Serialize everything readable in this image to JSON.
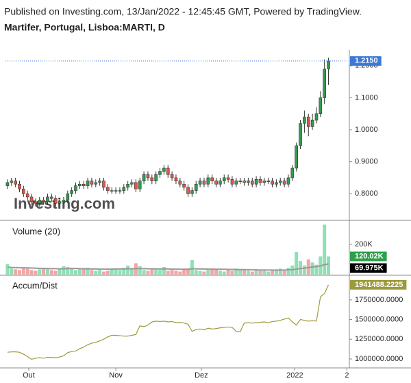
{
  "header": {
    "published": "Published on Investing.com, 13/Jan/2022 - 12:45:45 GMT, Powered by TradingView.",
    "symbol": "Martifer, Portugal, Lisboa:MARTI, D"
  },
  "chart_data": [
    {
      "type": "candlestick",
      "watermark": "Investing.com",
      "up_color": "#2e9e4b",
      "down_color": "#e5534b",
      "xlim": [
        -0.5,
        85.2
      ],
      "xticks": [
        {
          "value": 5.3,
          "label": "Out"
        },
        {
          "value": 27,
          "label": "Nov"
        },
        {
          "value": 48.3,
          "label": "Dez"
        },
        {
          "value": 71.6,
          "label": "2022"
        },
        {
          "value": 84.6,
          "label": "2"
        }
      ],
      "ylim": [
        0.719,
        1.2447
      ],
      "yticks": [
        {
          "value": 0.8,
          "label": "0.8000"
        },
        {
          "value": 0.9,
          "label": "0.9000"
        },
        {
          "value": 1.0,
          "label": "1.0000"
        },
        {
          "value": 1.1,
          "label": "1.1000"
        },
        {
          "value": 1.2,
          "label": "1.2000"
        }
      ],
      "last_price": {
        "value": 1.215,
        "label": "1.2150",
        "color": "#3c78d8"
      },
      "open": [
        0.825,
        0.835,
        0.84,
        0.83,
        0.815,
        0.8,
        0.79,
        0.775,
        0.77,
        0.78,
        0.775,
        0.79,
        0.785,
        0.77,
        0.775,
        0.78,
        0.8,
        0.81,
        0.825,
        0.83,
        0.825,
        0.84,
        0.83,
        0.835,
        0.84,
        0.82,
        0.81,
        0.81,
        0.81,
        0.81,
        0.82,
        0.83,
        0.835,
        0.815,
        0.84,
        0.86,
        0.85,
        0.84,
        0.86,
        0.87,
        0.88,
        0.86,
        0.85,
        0.84,
        0.83,
        0.82,
        0.8,
        0.81,
        0.83,
        0.84,
        0.83,
        0.85,
        0.84,
        0.83,
        0.84,
        0.85,
        0.845,
        0.83,
        0.84,
        0.84,
        0.835,
        0.84,
        0.83,
        0.845,
        0.835,
        0.84,
        0.84,
        0.83,
        0.835,
        0.84,
        0.83,
        0.85,
        0.88,
        0.95,
        1.02,
        1.04,
        1.01,
        1.03,
        1.05,
        1.1,
        1.19
      ],
      "high": [
        0.845,
        0.85,
        0.85,
        0.84,
        0.825,
        0.81,
        0.8,
        0.785,
        0.79,
        0.79,
        0.8,
        0.8,
        0.795,
        0.785,
        0.79,
        0.81,
        0.82,
        0.835,
        0.84,
        0.84,
        0.85,
        0.85,
        0.845,
        0.85,
        0.85,
        0.83,
        0.82,
        0.82,
        0.82,
        0.83,
        0.84,
        0.845,
        0.845,
        0.85,
        0.87,
        0.87,
        0.86,
        0.87,
        0.88,
        0.89,
        0.89,
        0.87,
        0.86,
        0.85,
        0.84,
        0.83,
        0.82,
        0.84,
        0.85,
        0.85,
        0.86,
        0.86,
        0.85,
        0.85,
        0.86,
        0.86,
        0.855,
        0.85,
        0.85,
        0.85,
        0.85,
        0.85,
        0.855,
        0.855,
        0.85,
        0.85,
        0.85,
        0.845,
        0.85,
        0.85,
        0.86,
        0.89,
        0.96,
        1.03,
        1.06,
        1.05,
        1.05,
        1.07,
        1.12,
        1.22,
        1.225
      ],
      "low": [
        0.815,
        0.825,
        0.82,
        0.805,
        0.79,
        0.78,
        0.765,
        0.76,
        0.76,
        0.765,
        0.765,
        0.775,
        0.76,
        0.76,
        0.765,
        0.77,
        0.79,
        0.8,
        0.815,
        0.815,
        0.815,
        0.82,
        0.82,
        0.825,
        0.81,
        0.8,
        0.8,
        0.8,
        0.8,
        0.8,
        0.81,
        0.82,
        0.805,
        0.805,
        0.83,
        0.84,
        0.83,
        0.83,
        0.85,
        0.86,
        0.85,
        0.84,
        0.83,
        0.82,
        0.81,
        0.79,
        0.79,
        0.8,
        0.82,
        0.82,
        0.82,
        0.83,
        0.82,
        0.82,
        0.83,
        0.835,
        0.82,
        0.82,
        0.83,
        0.825,
        0.825,
        0.82,
        0.82,
        0.825,
        0.825,
        0.83,
        0.82,
        0.82,
        0.825,
        0.82,
        0.82,
        0.84,
        0.87,
        0.94,
        0.99,
        0.98,
        1.0,
        1.02,
        1.04,
        1.08,
        1.14
      ],
      "close": [
        0.835,
        0.84,
        0.83,
        0.815,
        0.8,
        0.79,
        0.775,
        0.77,
        0.78,
        0.775,
        0.79,
        0.785,
        0.77,
        0.775,
        0.78,
        0.8,
        0.81,
        0.825,
        0.83,
        0.825,
        0.84,
        0.83,
        0.835,
        0.84,
        0.82,
        0.81,
        0.81,
        0.81,
        0.81,
        0.82,
        0.83,
        0.835,
        0.815,
        0.84,
        0.86,
        0.85,
        0.84,
        0.86,
        0.87,
        0.88,
        0.86,
        0.85,
        0.84,
        0.83,
        0.82,
        0.8,
        0.81,
        0.83,
        0.84,
        0.83,
        0.85,
        0.84,
        0.83,
        0.84,
        0.85,
        0.845,
        0.83,
        0.84,
        0.84,
        0.835,
        0.84,
        0.83,
        0.845,
        0.835,
        0.84,
        0.84,
        0.83,
        0.835,
        0.84,
        0.83,
        0.85,
        0.88,
        0.95,
        1.02,
        1.04,
        1.01,
        1.03,
        1.05,
        1.1,
        1.19,
        1.215
      ]
    },
    {
      "type": "bar",
      "title": "Volume (20)",
      "up_color": "#8fe0b5",
      "down_color": "#f4a5a5",
      "last_label": "120.02K",
      "last_label_color": "#2e9e4b",
      "ylim": [
        0,
        354000
      ],
      "yticks": [
        {
          "value": 200000,
          "label": "200K"
        }
      ],
      "values": [
        70000,
        40000,
        35000,
        30000,
        45000,
        40000,
        30000,
        25000,
        35000,
        45000,
        40000,
        30000,
        25000,
        35000,
        55000,
        50000,
        45000,
        30000,
        40000,
        35000,
        45000,
        30000,
        25000,
        30000,
        20000,
        25000,
        40000,
        35000,
        30000,
        45000,
        60000,
        40000,
        75000,
        55000,
        30000,
        25000,
        40000,
        35000,
        30000,
        50000,
        25000,
        30000,
        25000,
        20000,
        35000,
        40000,
        95000,
        30000,
        25000,
        20000,
        30000,
        40000,
        35000,
        25000,
        20000,
        30000,
        25000,
        40000,
        35000,
        30000,
        25000,
        20000,
        30000,
        25000,
        25000,
        20000,
        30000,
        35000,
        40000,
        25000,
        45000,
        60000,
        150000,
        90000,
        60000,
        100000,
        80000,
        65000,
        120000,
        330000,
        120020
      ],
      "ma": {
        "color": "#999999",
        "last_label": "69.975K",
        "last_label_color": "#000000",
        "values": [
          48000,
          47000,
          46000,
          45000,
          45000,
          44000,
          43000,
          42000,
          41000,
          40000,
          40000,
          39000,
          39000,
          38000,
          38000,
          39000,
          40000,
          40000,
          39000,
          38000,
          38000,
          37000,
          37000,
          36000,
          36000,
          36000,
          36000,
          37000,
          37000,
          37000,
          38000,
          38000,
          39000,
          39000,
          39000,
          38000,
          38000,
          38000,
          37000,
          37000,
          37000,
          36000,
          36000,
          35000,
          35000,
          36000,
          38000,
          38000,
          37000,
          37000,
          36000,
          36000,
          35000,
          35000,
          35000,
          34000,
          34000,
          33000,
          33000,
          33000,
          32000,
          31000,
          31000,
          30000,
          30000,
          30000,
          30000,
          29000,
          29000,
          30000,
          31000,
          32000,
          36000,
          40000,
          42000,
          46000,
          50000,
          53000,
          57000,
          66000,
          69975
        ]
      }
    },
    {
      "type": "line",
      "title": "Accum/Dist",
      "color": "#9c9a3a",
      "ylim": [
        895000,
        2045000
      ],
      "yticks": [
        {
          "value": 1000000,
          "label": "1000000.0000"
        },
        {
          "value": 1250000,
          "label": "1250000.0000"
        },
        {
          "value": 1500000,
          "label": "1500000.0000"
        },
        {
          "value": 1750000,
          "label": "1750000.0000"
        }
      ],
      "values": [
        1085000,
        1090000,
        1090000,
        1085000,
        1060000,
        1030000,
        995000,
        1010000,
        1015000,
        1010000,
        1020000,
        1020000,
        1015000,
        1025000,
        1040000,
        1080000,
        1095000,
        1100000,
        1130000,
        1150000,
        1180000,
        1200000,
        1210000,
        1230000,
        1250000,
        1280000,
        1300000,
        1300000,
        1295000,
        1290000,
        1290000,
        1300000,
        1310000,
        1420000,
        1410000,
        1430000,
        1470000,
        1480000,
        1475000,
        1480000,
        1470000,
        1475000,
        1460000,
        1465000,
        1455000,
        1440000,
        1350000,
        1375000,
        1380000,
        1370000,
        1390000,
        1380000,
        1385000,
        1395000,
        1400000,
        1405000,
        1400000,
        1350000,
        1345000,
        1455000,
        1460000,
        1455000,
        1460000,
        1465000,
        1470000,
        1460000,
        1475000,
        1480000,
        1490000,
        1505000,
        1520000,
        1470000,
        1430000,
        1500000,
        1490000,
        1480000,
        1485000,
        1480000,
        1790000,
        1830000,
        1941488.2225
      ]
    }
  ]
}
